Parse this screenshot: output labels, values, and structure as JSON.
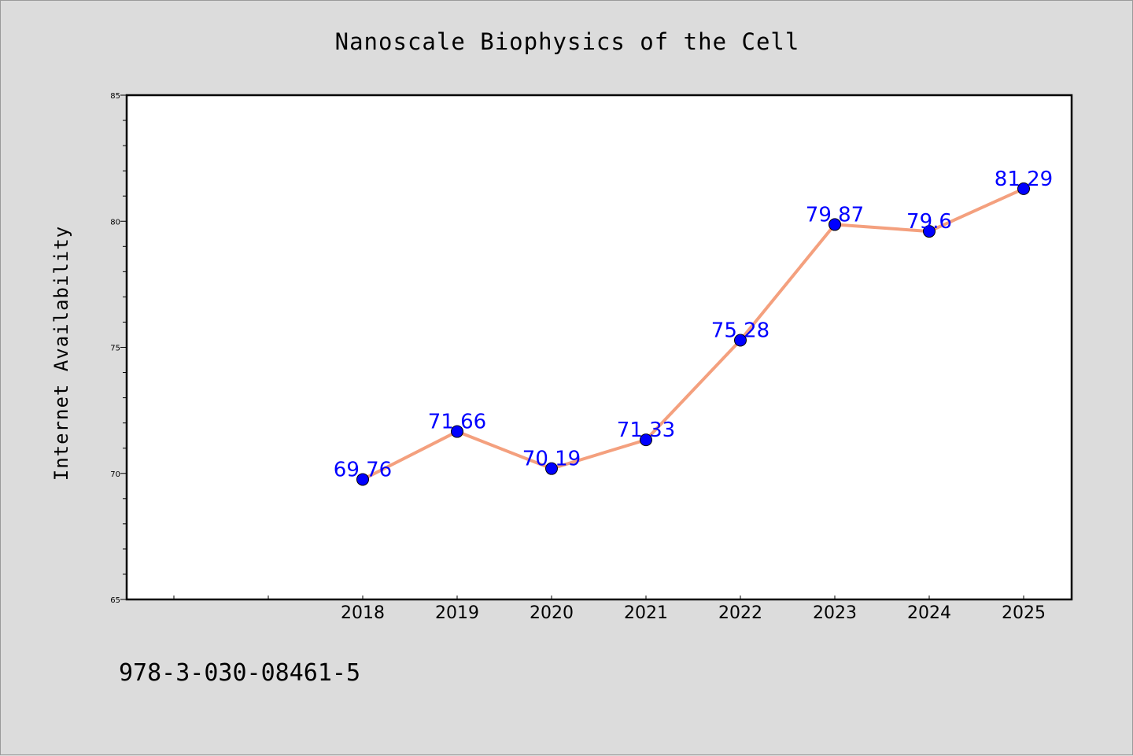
{
  "chart_data": {
    "type": "line",
    "title": "Nanoscale Biophysics of the Cell",
    "xlabel": "",
    "ylabel": "Internet Availability",
    "categories": [
      "2018",
      "2019",
      "2020",
      "2021",
      "2022",
      "2023",
      "2024",
      "2025"
    ],
    "series": [
      {
        "values": [
          69.76,
          71.66,
          70.19,
          71.33,
          75.28,
          79.87,
          79.6,
          81.29
        ],
        "labels": [
          "69.76",
          "71.66",
          "70.19",
          "71.33",
          "75.28",
          "79.87",
          "79.6",
          "81.29"
        ],
        "line_color": "#f4a07e",
        "marker_color": "#0000ff"
      }
    ],
    "ylim": [
      65,
      85
    ],
    "yticks": [
      "65",
      "70",
      "75",
      "80",
      "85"
    ],
    "grid": false,
    "legend": "none"
  },
  "footer": {
    "text": "978-3-030-08461-5"
  },
  "colors": {
    "background": "#dcdcdc",
    "plot_background": "#ffffff",
    "label_color": "#0000ff"
  }
}
